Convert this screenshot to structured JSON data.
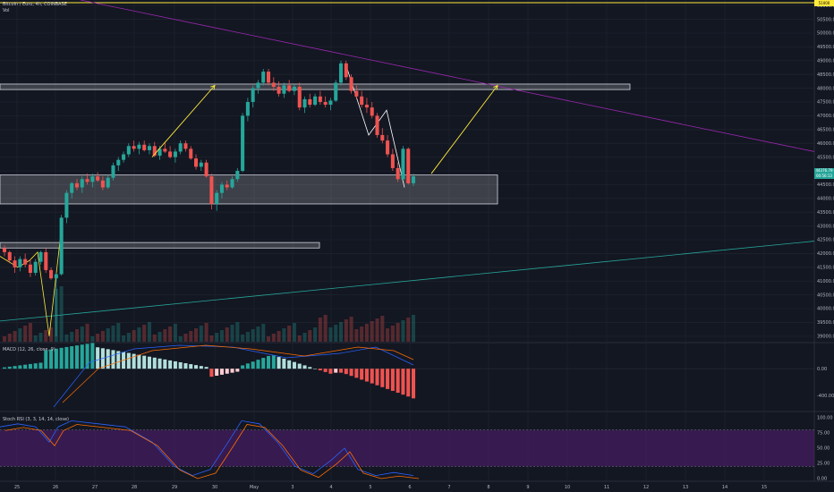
{
  "header": {
    "symbol": "Bitcoin / Euro, 4h, COINBASE",
    "volume_label": "Vol",
    "price_tag": "44376.79",
    "price_tag_sub": "00:56:13",
    "top_tag": "51000"
  },
  "macd_legend": "MACD (12, 26, close, 9)",
  "rsi_legend": "Stoch RSI (3, 3, 14, 14, close)",
  "colors": {
    "background": "#131722",
    "up": "#26a69a",
    "down": "#ef5350",
    "zone": "#ffffff",
    "trendline_purple": "#9c27b0",
    "trendline_teal": "#26a69a",
    "arrow": "#ffeb3b",
    "stoch_band": "#7b1fa2",
    "k_line": "#2962ff",
    "d_line": "#ff6d00"
  },
  "chart_data": [
    {
      "type": "candlestick",
      "title": "Bitcoin / Euro, 4h, COINBASE",
      "y_ticks": [
        39000,
        39500,
        40000,
        40500,
        41000,
        41500,
        42000,
        42500,
        43000,
        43500,
        44000,
        44500,
        45000,
        45500,
        46000,
        46500,
        47000,
        47500,
        48000,
        48500,
        49000,
        49500,
        50000,
        50500,
        51000
      ],
      "ylim": [
        38800,
        51200
      ],
      "x_ticks": [
        "25",
        "26",
        "27",
        "28",
        "29",
        "30",
        "May",
        "3",
        "4",
        "5",
        "6",
        "7",
        "8",
        "9",
        "10",
        "11",
        "12",
        "13",
        "14",
        "15"
      ],
      "candles": [
        [
          42200,
          42300,
          41900,
          42050
        ],
        [
          42050,
          42100,
          41650,
          41750
        ],
        [
          41750,
          41900,
          41300,
          41500
        ],
        [
          41500,
          41900,
          41350,
          41800
        ],
        [
          41800,
          42000,
          41500,
          41600
        ],
        [
          41600,
          41800,
          41150,
          41300
        ],
        [
          41300,
          41800,
          41200,
          41700
        ],
        [
          41700,
          42100,
          41600,
          42050
        ],
        [
          42050,
          42200,
          41300,
          41400
        ],
        [
          41400,
          41500,
          41050,
          41100
        ],
        [
          41100,
          41300,
          39000,
          41250
        ],
        [
          41250,
          43400,
          41200,
          43300
        ],
        [
          43300,
          44300,
          43100,
          44200
        ],
        [
          44200,
          44600,
          44000,
          44550
        ],
        [
          44550,
          44700,
          44300,
          44400
        ],
        [
          44400,
          44800,
          44200,
          44700
        ],
        [
          44700,
          44900,
          44500,
          44600
        ],
        [
          44600,
          44900,
          44400,
          44800
        ],
        [
          44800,
          44950,
          44600,
          44650
        ],
        [
          44650,
          44800,
          44300,
          44400
        ],
        [
          44400,
          44850,
          44350,
          44750
        ],
        [
          44750,
          45300,
          44650,
          45200
        ],
        [
          45200,
          45500,
          45000,
          45400
        ],
        [
          45400,
          45700,
          45300,
          45600
        ],
        [
          45600,
          46000,
          45500,
          45900
        ],
        [
          45900,
          46100,
          45700,
          45800
        ],
        [
          45800,
          46050,
          45600,
          45950
        ],
        [
          45950,
          46100,
          45700,
          45750
        ],
        [
          45750,
          46000,
          45600,
          45900
        ],
        [
          45900,
          46050,
          45500,
          45550
        ],
        [
          45550,
          45900,
          45400,
          45800
        ],
        [
          45800,
          46050,
          45650,
          45700
        ],
        [
          45700,
          45900,
          45450,
          45500
        ],
        [
          45500,
          45800,
          45300,
          45700
        ],
        [
          45700,
          46100,
          45600,
          46000
        ],
        [
          46000,
          46100,
          45700,
          45800
        ],
        [
          45800,
          45900,
          45400,
          45450
        ],
        [
          45450,
          45600,
          45050,
          45150
        ],
        [
          45150,
          45400,
          45000,
          45300
        ],
        [
          45300,
          45400,
          44750,
          44800
        ],
        [
          44800,
          44900,
          43600,
          43800
        ],
        [
          43800,
          44300,
          43550,
          44200
        ],
        [
          44200,
          44600,
          44000,
          44500
        ],
        [
          44500,
          44650,
          44300,
          44400
        ],
        [
          44400,
          44800,
          44350,
          44700
        ],
        [
          44700,
          45100,
          44600,
          45000
        ],
        [
          45000,
          47100,
          44950,
          47000
        ],
        [
          47000,
          47650,
          46800,
          47500
        ],
        [
          47500,
          48100,
          47300,
          48000
        ],
        [
          48000,
          48300,
          47800,
          48200
        ],
        [
          48200,
          48700,
          48100,
          48600
        ],
        [
          48600,
          48700,
          48100,
          48200
        ],
        [
          48200,
          48400,
          47900,
          48050
        ],
        [
          48050,
          48250,
          47700,
          47800
        ],
        [
          47800,
          48200,
          47650,
          48100
        ],
        [
          48100,
          48300,
          47850,
          47900
        ],
        [
          47900,
          48150,
          47750,
          48050
        ],
        [
          48050,
          48200,
          47200,
          47300
        ],
        [
          47300,
          47700,
          47100,
          47600
        ],
        [
          47600,
          47800,
          47300,
          47400
        ],
        [
          47400,
          47800,
          47350,
          47700
        ],
        [
          47700,
          47900,
          47400,
          47500
        ],
        [
          47500,
          47700,
          47300,
          47400
        ],
        [
          47400,
          47650,
          47200,
          47550
        ],
        [
          47550,
          48300,
          47500,
          48200
        ],
        [
          48200,
          49000,
          48100,
          48900
        ],
        [
          48900,
          49000,
          48300,
          48400
        ],
        [
          48400,
          48500,
          47800,
          47900
        ],
        [
          47900,
          48100,
          47600,
          47700
        ],
        [
          47700,
          47900,
          47300,
          47400
        ],
        [
          47400,
          47650,
          47100,
          47300
        ],
        [
          47300,
          47500,
          46900,
          47000
        ],
        [
          47000,
          47100,
          46200,
          46300
        ],
        [
          46300,
          46550,
          46000,
          46100
        ],
        [
          46100,
          46300,
          45500,
          45600
        ],
        [
          45600,
          45800,
          45000,
          45100
        ],
        [
          45100,
          45300,
          44600,
          44700
        ],
        [
          44700,
          45900,
          44650,
          45800
        ],
        [
          45800,
          45850,
          44500,
          44550
        ],
        [
          44550,
          44900,
          44450,
          44800
        ]
      ],
      "zones": [
        [
          47950,
          48150
        ],
        [
          43800,
          44850
        ],
        [
          42200,
          42400
        ]
      ]
    },
    {
      "type": "bar",
      "title": "MACD (12, 26, close, 9)",
      "y_ticks": [
        0,
        -400
      ],
      "ylim": [
        -600,
        350
      ]
    },
    {
      "type": "line",
      "title": "Stoch RSI (3, 3, 14, 14, close)",
      "y_ticks": [
        100,
        75,
        50,
        25,
        0
      ],
      "ylim": [
        0,
        100
      ]
    }
  ]
}
